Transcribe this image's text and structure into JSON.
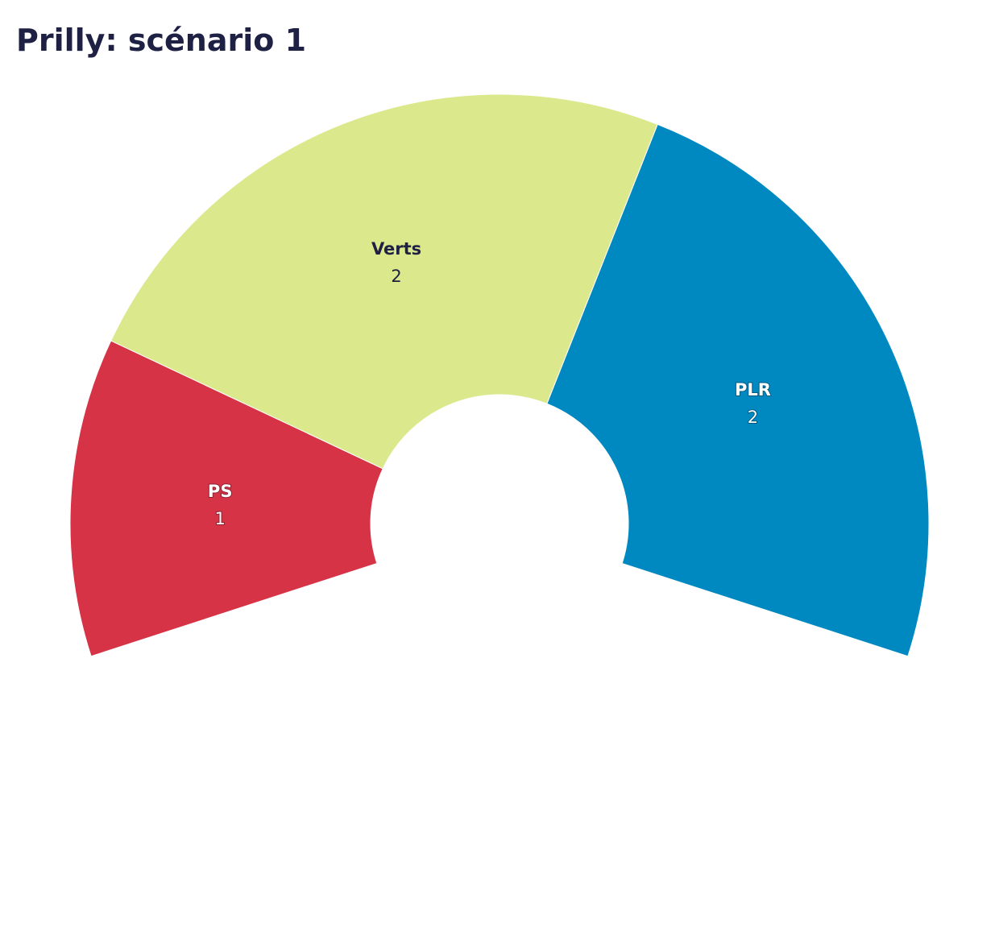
{
  "chart_data": {
    "type": "donut",
    "title": "Prilly: scénario 1",
    "categories": [
      "PS",
      "Verts",
      "PLR"
    ],
    "values": [
      1,
      2,
      2
    ],
    "colors": [
      "#d63346",
      "#dbe88b",
      "#0089c1"
    ]
  }
}
